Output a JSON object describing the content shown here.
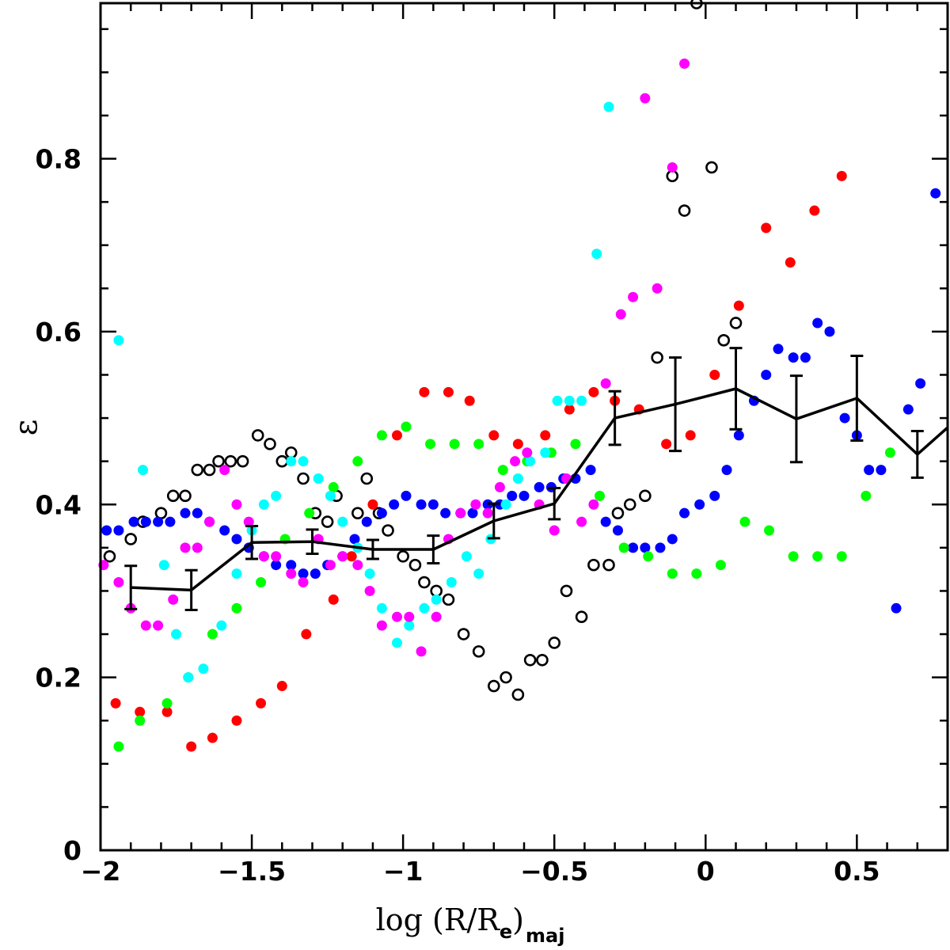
{
  "chart_data": {
    "type": "scatter",
    "xlabel": {
      "main": "log (R/R",
      "sub1": "e",
      "close": ")",
      "sub2": "maj"
    },
    "ylabel": "ε",
    "xlim": [
      -2,
      0.8
    ],
    "ylim": [
      0,
      0.98
    ],
    "xticks": {
      "values": [
        -2,
        -1.5,
        -1,
        -0.5,
        0,
        0.5
      ],
      "labels": [
        "−2",
        "−1.5",
        "−1",
        "−0.5",
        "0",
        "0.5"
      ]
    },
    "yticks": {
      "values": [
        0,
        0.2,
        0.4,
        0.6,
        0.8
      ],
      "labels": [
        "0",
        "0.2",
        "0.4",
        "0.6",
        "0.8"
      ]
    },
    "colors": {
      "red": "#ff0000",
      "green": "#00ff00",
      "blue": "#0000ff",
      "cyan": "#00ffff",
      "magenta": "#ff00ff",
      "black": "#000000"
    },
    "series": [
      {
        "name": "open-black",
        "color": "#000000",
        "marker": "open",
        "points": [
          [
            -1.97,
            0.34
          ],
          [
            -1.9,
            0.36
          ],
          [
            -1.86,
            0.38
          ],
          [
            -1.8,
            0.39
          ],
          [
            -1.76,
            0.41
          ],
          [
            -1.72,
            0.41
          ],
          [
            -1.68,
            0.44
          ],
          [
            -1.64,
            0.44
          ],
          [
            -1.61,
            0.45
          ],
          [
            -1.57,
            0.45
          ],
          [
            -1.53,
            0.45
          ],
          [
            -1.48,
            0.48
          ],
          [
            -1.44,
            0.47
          ],
          [
            -1.4,
            0.45
          ],
          [
            -1.37,
            0.46
          ],
          [
            -1.33,
            0.43
          ],
          [
            -1.29,
            0.39
          ],
          [
            -1.25,
            0.38
          ],
          [
            -1.22,
            0.41
          ],
          [
            -1.15,
            0.39
          ],
          [
            -1.12,
            0.43
          ],
          [
            -1.08,
            0.39
          ],
          [
            -1.05,
            0.37
          ],
          [
            -1.0,
            0.34
          ],
          [
            -0.96,
            0.33
          ],
          [
            -0.93,
            0.31
          ],
          [
            -0.89,
            0.3
          ],
          [
            -0.85,
            0.29
          ],
          [
            -0.8,
            0.25
          ],
          [
            -0.75,
            0.23
          ],
          [
            -0.7,
            0.19
          ],
          [
            -0.66,
            0.2
          ],
          [
            -0.62,
            0.18
          ],
          [
            -0.58,
            0.22
          ],
          [
            -0.54,
            0.22
          ],
          [
            -0.5,
            0.24
          ],
          [
            -0.46,
            0.3
          ],
          [
            -0.41,
            0.27
          ],
          [
            -0.37,
            0.33
          ],
          [
            -0.32,
            0.33
          ],
          [
            -0.29,
            0.39
          ],
          [
            -0.25,
            0.4
          ],
          [
            -0.2,
            0.41
          ],
          [
            -0.16,
            0.57
          ],
          [
            -0.11,
            0.78
          ],
          [
            -0.07,
            0.74
          ],
          [
            -0.03,
            0.98
          ],
          [
            0.02,
            0.79
          ],
          [
            0.06,
            0.59
          ],
          [
            0.1,
            0.61
          ]
        ]
      },
      {
        "name": "blue",
        "color": "#0000ff",
        "marker": "filled",
        "points": [
          [
            -1.98,
            0.37
          ],
          [
            -1.94,
            0.37
          ],
          [
            -1.89,
            0.38
          ],
          [
            -1.85,
            0.38
          ],
          [
            -1.81,
            0.38
          ],
          [
            -1.77,
            0.38
          ],
          [
            -1.72,
            0.39
          ],
          [
            -1.68,
            0.39
          ],
          [
            -1.64,
            0.38
          ],
          [
            -1.59,
            0.37
          ],
          [
            -1.55,
            0.36
          ],
          [
            -1.51,
            0.35
          ],
          [
            -1.46,
            0.34
          ],
          [
            -1.42,
            0.33
          ],
          [
            -1.37,
            0.33
          ],
          [
            -1.33,
            0.32
          ],
          [
            -1.29,
            0.32
          ],
          [
            -1.25,
            0.33
          ],
          [
            -1.2,
            0.34
          ],
          [
            -1.16,
            0.36
          ],
          [
            -1.12,
            0.38
          ],
          [
            -1.07,
            0.39
          ],
          [
            -1.03,
            0.4
          ],
          [
            -0.99,
            0.41
          ],
          [
            -0.94,
            0.4
          ],
          [
            -0.9,
            0.4
          ],
          [
            -0.86,
            0.39
          ],
          [
            -0.81,
            0.39
          ],
          [
            -0.77,
            0.39
          ],
          [
            -0.72,
            0.4
          ],
          [
            -0.68,
            0.4
          ],
          [
            -0.64,
            0.41
          ],
          [
            -0.6,
            0.41
          ],
          [
            -0.55,
            0.42
          ],
          [
            -0.51,
            0.42
          ],
          [
            -0.47,
            0.43
          ],
          [
            -0.43,
            0.43
          ],
          [
            -0.38,
            0.44
          ],
          [
            -0.33,
            0.38
          ],
          [
            -0.29,
            0.37
          ],
          [
            -0.24,
            0.35
          ],
          [
            -0.2,
            0.35
          ],
          [
            -0.15,
            0.35
          ],
          [
            -0.11,
            0.36
          ],
          [
            -0.07,
            0.39
          ],
          [
            -0.02,
            0.4
          ],
          [
            0.03,
            0.41
          ],
          [
            0.07,
            0.44
          ],
          [
            0.11,
            0.48
          ],
          [
            0.16,
            0.52
          ],
          [
            0.2,
            0.55
          ],
          [
            0.24,
            0.58
          ],
          [
            0.29,
            0.57
          ],
          [
            0.33,
            0.57
          ],
          [
            0.37,
            0.61
          ],
          [
            0.41,
            0.6
          ],
          [
            0.46,
            0.5
          ],
          [
            0.5,
            0.48
          ],
          [
            0.54,
            0.44
          ],
          [
            0.58,
            0.44
          ],
          [
            0.63,
            0.28
          ],
          [
            0.67,
            0.51
          ],
          [
            0.71,
            0.54
          ],
          [
            0.76,
            0.76
          ]
        ]
      },
      {
        "name": "red",
        "color": "#ff0000",
        "marker": "filled",
        "points": [
          [
            -1.95,
            0.17
          ],
          [
            -1.87,
            0.16
          ],
          [
            -1.78,
            0.16
          ],
          [
            -1.7,
            0.12
          ],
          [
            -1.63,
            0.13
          ],
          [
            -1.55,
            0.15
          ],
          [
            -1.47,
            0.17
          ],
          [
            -1.4,
            0.19
          ],
          [
            -1.32,
            0.25
          ],
          [
            -1.23,
            0.29
          ],
          [
            -1.17,
            0.34
          ],
          [
            -1.1,
            0.4
          ],
          [
            -1.02,
            0.48
          ],
          [
            -0.93,
            0.53
          ],
          [
            -0.85,
            0.53
          ],
          [
            -0.78,
            0.52
          ],
          [
            -0.7,
            0.48
          ],
          [
            -0.62,
            0.47
          ],
          [
            -0.53,
            0.48
          ],
          [
            -0.45,
            0.51
          ],
          [
            -0.37,
            0.53
          ],
          [
            -0.3,
            0.52
          ],
          [
            -0.22,
            0.51
          ],
          [
            -0.13,
            0.47
          ],
          [
            -0.05,
            0.48
          ],
          [
            0.03,
            0.55
          ],
          [
            0.11,
            0.63
          ],
          [
            0.2,
            0.72
          ],
          [
            0.28,
            0.68
          ],
          [
            0.36,
            0.74
          ],
          [
            0.45,
            0.78
          ]
        ]
      },
      {
        "name": "green",
        "color": "#00ff00",
        "marker": "filled",
        "points": [
          [
            -1.94,
            0.12
          ],
          [
            -1.87,
            0.15
          ],
          [
            -1.78,
            0.17
          ],
          [
            -1.71,
            0.2
          ],
          [
            -1.63,
            0.25
          ],
          [
            -1.55,
            0.28
          ],
          [
            -1.47,
            0.31
          ],
          [
            -1.39,
            0.36
          ],
          [
            -1.31,
            0.39
          ],
          [
            -1.23,
            0.42
          ],
          [
            -1.15,
            0.45
          ],
          [
            -1.07,
            0.48
          ],
          [
            -0.99,
            0.49
          ],
          [
            -0.91,
            0.47
          ],
          [
            -0.83,
            0.47
          ],
          [
            -0.75,
            0.47
          ],
          [
            -0.67,
            0.44
          ],
          [
            -0.59,
            0.45
          ],
          [
            -0.51,
            0.46
          ],
          [
            -0.43,
            0.47
          ],
          [
            -0.35,
            0.41
          ],
          [
            -0.27,
            0.35
          ],
          [
            -0.19,
            0.34
          ],
          [
            -0.11,
            0.32
          ],
          [
            -0.03,
            0.32
          ],
          [
            0.05,
            0.33
          ],
          [
            0.13,
            0.38
          ],
          [
            0.21,
            0.37
          ],
          [
            0.29,
            0.34
          ],
          [
            0.37,
            0.34
          ],
          [
            0.45,
            0.34
          ],
          [
            0.53,
            0.41
          ],
          [
            0.61,
            0.46
          ]
        ]
      },
      {
        "name": "cyan",
        "color": "#00ffff",
        "marker": "filled",
        "points": [
          [
            -1.94,
            0.59
          ],
          [
            -1.86,
            0.44
          ],
          [
            -1.79,
            0.33
          ],
          [
            -1.75,
            0.25
          ],
          [
            -1.71,
            0.2
          ],
          [
            -1.66,
            0.21
          ],
          [
            -1.6,
            0.26
          ],
          [
            -1.55,
            0.32
          ],
          [
            -1.5,
            0.37
          ],
          [
            -1.46,
            0.4
          ],
          [
            -1.42,
            0.41
          ],
          [
            -1.37,
            0.45
          ],
          [
            -1.33,
            0.45
          ],
          [
            -1.28,
            0.43
          ],
          [
            -1.24,
            0.41
          ],
          [
            -1.2,
            0.38
          ],
          [
            -1.15,
            0.35
          ],
          [
            -1.11,
            0.32
          ],
          [
            -1.07,
            0.28
          ],
          [
            -1.02,
            0.24
          ],
          [
            -0.98,
            0.26
          ],
          [
            -0.93,
            0.28
          ],
          [
            -0.89,
            0.29
          ],
          [
            -0.84,
            0.31
          ],
          [
            -0.79,
            0.34
          ],
          [
            -0.75,
            0.32
          ],
          [
            -0.71,
            0.36
          ],
          [
            -0.66,
            0.4
          ],
          [
            -0.62,
            0.43
          ],
          [
            -0.58,
            0.45
          ],
          [
            -0.53,
            0.46
          ],
          [
            -0.49,
            0.52
          ],
          [
            -0.45,
            0.52
          ],
          [
            -0.41,
            0.52
          ],
          [
            -0.36,
            0.69
          ],
          [
            -0.32,
            0.86
          ]
        ]
      },
      {
        "name": "magenta",
        "color": "#ff00ff",
        "marker": "filled",
        "points": [
          [
            -1.99,
            0.33
          ],
          [
            -1.94,
            0.31
          ],
          [
            -1.9,
            0.28
          ],
          [
            -1.85,
            0.26
          ],
          [
            -1.81,
            0.26
          ],
          [
            -1.76,
            0.29
          ],
          [
            -1.72,
            0.35
          ],
          [
            -1.68,
            0.35
          ],
          [
            -1.64,
            0.38
          ],
          [
            -1.59,
            0.44
          ],
          [
            -1.55,
            0.4
          ],
          [
            -1.51,
            0.38
          ],
          [
            -1.46,
            0.34
          ],
          [
            -1.42,
            0.34
          ],
          [
            -1.37,
            0.32
          ],
          [
            -1.33,
            0.31
          ],
          [
            -1.28,
            0.36
          ],
          [
            -1.24,
            0.33
          ],
          [
            -1.2,
            0.34
          ],
          [
            -1.15,
            0.33
          ],
          [
            -1.11,
            0.3
          ],
          [
            -1.07,
            0.26
          ],
          [
            -1.02,
            0.27
          ],
          [
            -0.98,
            0.27
          ],
          [
            -0.94,
            0.23
          ],
          [
            -0.89,
            0.27
          ],
          [
            -0.85,
            0.36
          ],
          [
            -0.81,
            0.39
          ],
          [
            -0.76,
            0.4
          ],
          [
            -0.72,
            0.39
          ],
          [
            -0.68,
            0.42
          ],
          [
            -0.63,
            0.45
          ],
          [
            -0.59,
            0.46
          ],
          [
            -0.55,
            0.4
          ],
          [
            -0.5,
            0.37
          ],
          [
            -0.46,
            0.43
          ],
          [
            -0.41,
            0.38
          ],
          [
            -0.37,
            0.4
          ],
          [
            -0.33,
            0.54
          ],
          [
            -0.28,
            0.62
          ],
          [
            -0.24,
            0.64
          ],
          [
            -0.2,
            0.87
          ],
          [
            -0.16,
            0.65
          ],
          [
            -0.11,
            0.79
          ],
          [
            -0.07,
            0.91
          ]
        ]
      }
    ],
    "mean_line": {
      "color": "#000000",
      "x": [
        -1.9,
        -1.7,
        -1.5,
        -1.3,
        -1.1,
        -0.9,
        -0.7,
        -0.5,
        -0.3,
        -0.1,
        0.1,
        0.3,
        0.5,
        0.7,
        0.8
      ],
      "y": [
        0.304,
        0.301,
        0.356,
        0.357,
        0.348,
        0.348,
        0.381,
        0.401,
        0.5,
        0.516,
        0.534,
        0.499,
        0.523,
        0.458,
        0.489
      ],
      "err": [
        0.025,
        0.023,
        0.019,
        0.014,
        0.011,
        0.016,
        0.02,
        0.018,
        0.031,
        0.054,
        0.047,
        0.05,
        0.049,
        0.027,
        null
      ]
    }
  }
}
